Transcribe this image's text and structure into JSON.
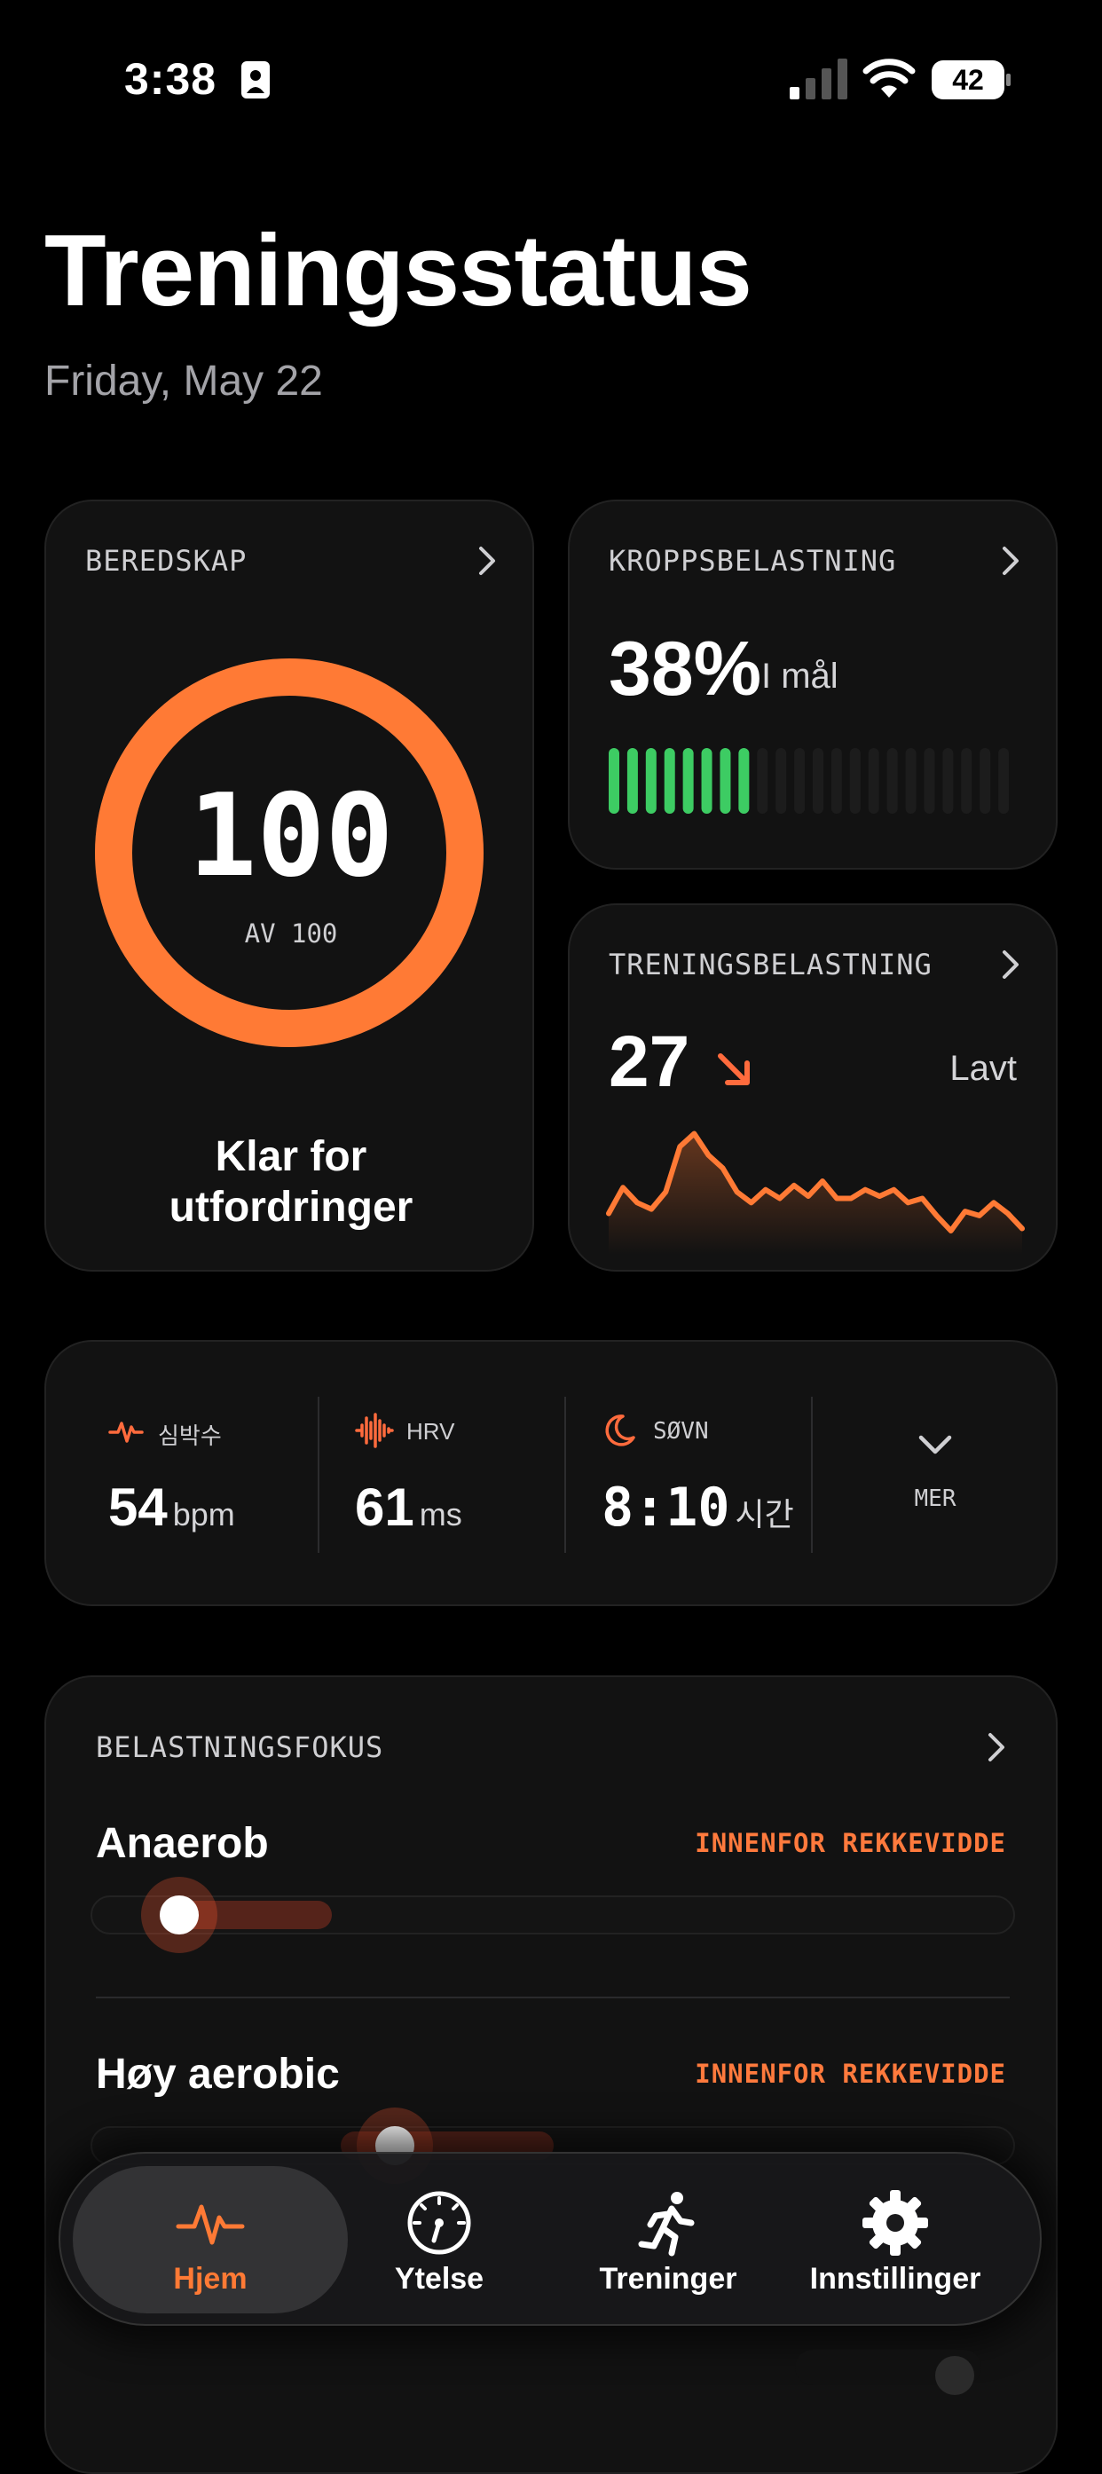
{
  "status_bar": {
    "time": "3:38",
    "battery": "42"
  },
  "page": {
    "title": "Treningsstatus",
    "date": "Friday, May 22"
  },
  "readiness": {
    "label": "BEREDSKAP",
    "value": "100",
    "sub": "AV 100",
    "fraction": 1.0,
    "status": "Klar for utfordringer",
    "accent": "#ff7a35"
  },
  "body_load": {
    "label": "KROPPSBELASTNING",
    "value": "38%",
    "status": "I mål",
    "bars_filled": 8,
    "bars_total": 22,
    "fill_color": "#3dcc63"
  },
  "training_load": {
    "label": "TRENINGSBELASTNING",
    "value": "27",
    "trend": "down",
    "status": "Lavt",
    "chart_data": {
      "type": "line",
      "values": [
        45,
        57,
        50,
        47,
        55,
        76,
        82,
        72,
        66,
        55,
        50,
        56,
        52,
        58,
        53,
        60,
        52,
        52,
        56,
        53,
        56,
        50,
        52,
        44,
        37,
        46,
        44,
        50,
        45,
        38
      ]
    }
  },
  "metrics": [
    {
      "icon": "heartbeat-icon",
      "label": "심박수",
      "value": "54",
      "unit": "bpm"
    },
    {
      "icon": "waveform-icon",
      "label": "HRV",
      "value": "61",
      "unit": "ms"
    },
    {
      "icon": "moon-icon",
      "label": "SØVN",
      "value": "8:10",
      "unit": "시간"
    }
  ],
  "more": {
    "label": "MER"
  },
  "focus": {
    "label": "BELASTNINGSFOKUS",
    "items": [
      {
        "name": "Anaerob",
        "status": "INNENFOR REKKEVIDDE"
      },
      {
        "name": "Høy aerobic",
        "status": "INNENFOR REKKEVIDDE"
      }
    ]
  },
  "tabs": [
    {
      "icon": "pulse-icon",
      "label": "Hjem",
      "active": true
    },
    {
      "icon": "gauge-icon",
      "label": "Ytelse",
      "active": false
    },
    {
      "icon": "runner-icon",
      "label": "Treninger",
      "active": false
    },
    {
      "icon": "gear-icon",
      "label": "Innstillinger",
      "active": false
    }
  ]
}
